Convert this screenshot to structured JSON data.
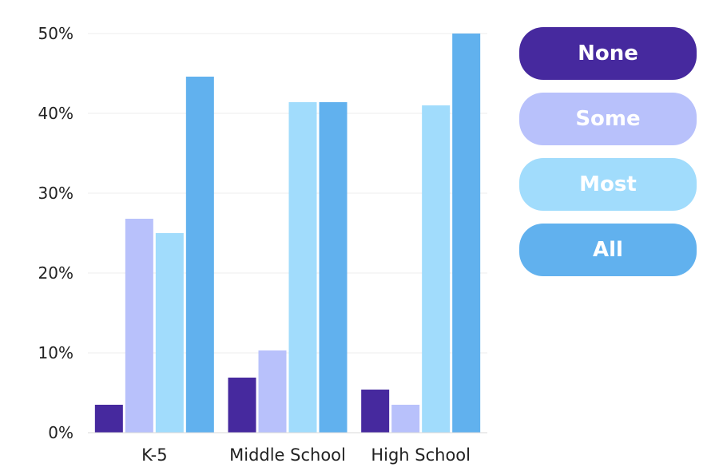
{
  "chart_data": {
    "type": "bar",
    "categories": [
      "K-5",
      "Middle School",
      "High School"
    ],
    "series": [
      {
        "name": "None",
        "color": "#46299E",
        "values": [
          3.5,
          6.9,
          5.4
        ]
      },
      {
        "name": "Some",
        "color": "#B8C1FB",
        "values": [
          26.8,
          10.3,
          3.5
        ]
      },
      {
        "name": "Most",
        "color": "#A1DCFC",
        "values": [
          25.0,
          41.4,
          41.0
        ]
      },
      {
        "name": "All",
        "color": "#61B1EE",
        "values": [
          44.6,
          41.4,
          50.0
        ]
      }
    ],
    "yticks": [
      "0%",
      "10%",
      "20%",
      "30%",
      "40%",
      "50%"
    ],
    "ylim": [
      0,
      50
    ],
    "grid": true,
    "legend_position": "right"
  }
}
